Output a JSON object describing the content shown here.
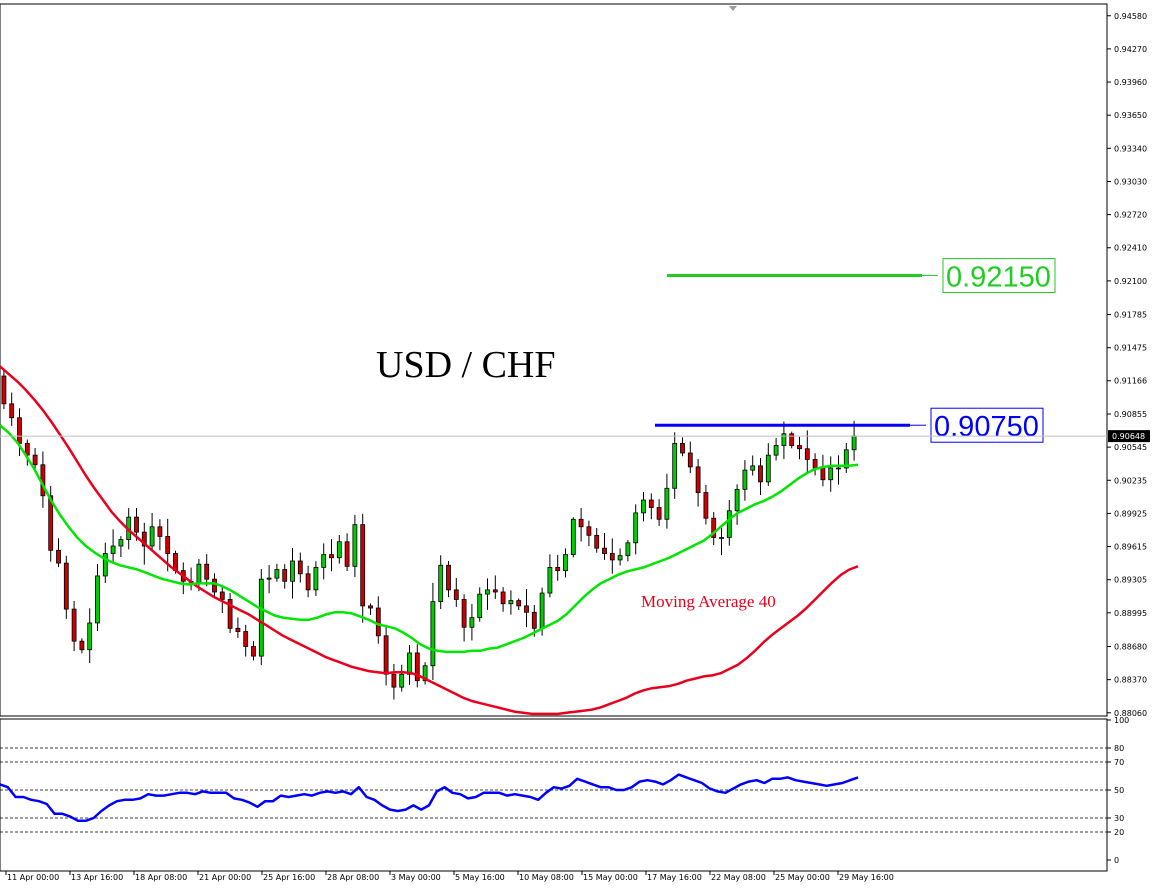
{
  "chart_data": [
    {
      "type": "candlestick",
      "title": "USD / CHF",
      "ylim": [
        0.8803,
        0.9469
      ],
      "y_ticks": [
        "0.94580",
        "0.94270",
        "0.93960",
        "0.93650",
        "0.93340",
        "0.93030",
        "0.92720",
        "0.92410",
        "0.92100",
        "0.91785",
        "0.91475",
        "0.91166",
        "0.90855",
        "0.90545",
        "0.90235",
        "0.89925",
        "0.89615",
        "0.89305",
        "0.88995",
        "0.88680",
        "0.88370",
        "0.88060"
      ],
      "x_ticks": [
        "11 Apr 00:00",
        "13 Apr 16:00",
        "18 Apr 08:00",
        "21 Apr 00:00",
        "25 Apr 16:00",
        "28 Apr 08:00",
        "3 May 00:00",
        "5 May 16:00",
        "10 May 08:00",
        "15 May 00:00",
        "17 May 16:00",
        "22 May 08:00",
        "25 May 00:00",
        "29 May 16:00"
      ],
      "current_price": "0.90648",
      "price_path": [
        0.9121,
        0.9095,
        0.9082,
        0.9058,
        0.9047,
        0.9038,
        0.9009,
        0.8958,
        0.8946,
        0.8903,
        0.8873,
        0.8865,
        0.889,
        0.8934,
        0.8955,
        0.8962,
        0.8968,
        0.8989,
        0.8975,
        0.8962,
        0.898,
        0.8971,
        0.8955,
        0.8939,
        0.8929,
        0.8928,
        0.8945,
        0.8931,
        0.8919,
        0.8912,
        0.8885,
        0.8882,
        0.8868,
        0.8859,
        0.8931,
        0.8932,
        0.894,
        0.8929,
        0.8948,
        0.8936,
        0.8921,
        0.8942,
        0.8954,
        0.8951,
        0.8966,
        0.8943,
        0.8982,
        0.8906,
        0.8904,
        0.8878,
        0.8842,
        0.883,
        0.8842,
        0.8862,
        0.8836,
        0.885,
        0.891,
        0.8944,
        0.8921,
        0.8912,
        0.8886,
        0.8895,
        0.8917,
        0.8921,
        0.8919,
        0.8908,
        0.8911,
        0.8906,
        0.89,
        0.8885,
        0.8918,
        0.8942,
        0.8939,
        0.8954,
        0.8987,
        0.898,
        0.8972,
        0.896,
        0.8955,
        0.8949,
        0.8953,
        0.8965,
        0.8993,
        0.9005,
        0.8998,
        0.8987,
        0.9016,
        0.9058,
        0.9049,
        0.9036,
        0.9012,
        0.8988,
        0.897,
        0.897,
        0.8995,
        0.9015,
        0.9033,
        0.9037,
        0.9022,
        0.9047,
        0.9056,
        0.9067,
        0.9056,
        0.9053,
        0.9043,
        0.9035,
        0.9024,
        0.9035,
        0.9035,
        0.9052,
        0.9065
      ],
      "series": [
        {
          "name": "Moving Average 40",
          "color": "#e8001c",
          "values": [
            0.913,
            0.9123,
            0.9116,
            0.9108,
            0.9099,
            0.9089,
            0.9078,
            0.9066,
            0.9054,
            0.9041,
            0.9028,
            0.9016,
            0.9005,
            0.8994,
            0.8985,
            0.8977,
            0.897,
            0.8963,
            0.8956,
            0.8949,
            0.8942,
            0.8936,
            0.893,
            0.8924,
            0.8919,
            0.8914,
            0.891,
            0.8906,
            0.8902,
            0.8898,
            0.8893,
            0.8888,
            0.8883,
            0.8878,
            0.8874,
            0.887,
            0.8866,
            0.8862,
            0.8858,
            0.8855,
            0.8852,
            0.8849,
            0.8847,
            0.8845,
            0.8844,
            0.8843,
            0.8844,
            0.8844,
            0.8843,
            0.884,
            0.8836,
            0.8832,
            0.8828,
            0.8824,
            0.882,
            0.8817,
            0.8815,
            0.8813,
            0.8811,
            0.8809,
            0.8807,
            0.8806,
            0.8805,
            0.8805,
            0.8805,
            0.8805,
            0.8806,
            0.8807,
            0.8808,
            0.8809,
            0.8811,
            0.8814,
            0.8817,
            0.882,
            0.8824,
            0.8827,
            0.8829,
            0.883,
            0.8831,
            0.8833,
            0.8836,
            0.8838,
            0.884,
            0.8841,
            0.8843,
            0.8847,
            0.8851,
            0.8857,
            0.8864,
            0.8872,
            0.8879,
            0.8885,
            0.8891,
            0.8897,
            0.8904,
            0.8912,
            0.892,
            0.8928,
            0.8935,
            0.894,
            0.8943
          ]
        },
        {
          "name": "",
          "color": "#00e600",
          "values": [
            0.9075,
            0.9068,
            0.9059,
            0.9047,
            0.9034,
            0.9019,
            0.9004,
            0.8991,
            0.898,
            0.897,
            0.8962,
            0.8956,
            0.8951,
            0.8947,
            0.8944,
            0.8942,
            0.894,
            0.8937,
            0.8934,
            0.8931,
            0.8929,
            0.8927,
            0.8926,
            0.8927,
            0.8927,
            0.8927,
            0.8924,
            0.892,
            0.8915,
            0.891,
            0.8905,
            0.8901,
            0.8897,
            0.8895,
            0.8894,
            0.8893,
            0.8893,
            0.8895,
            0.8898,
            0.89,
            0.89,
            0.8899,
            0.8896,
            0.8893,
            0.8889,
            0.8887,
            0.8885,
            0.8881,
            0.8876,
            0.887,
            0.8866,
            0.8864,
            0.8863,
            0.8863,
            0.8863,
            0.8864,
            0.8864,
            0.8866,
            0.8867,
            0.887,
            0.8873,
            0.8876,
            0.888,
            0.8884,
            0.8888,
            0.8892,
            0.8898,
            0.8906,
            0.8914,
            0.8921,
            0.8927,
            0.8931,
            0.8935,
            0.8938,
            0.894,
            0.8942,
            0.8945,
            0.8948,
            0.8951,
            0.8955,
            0.8959,
            0.8963,
            0.8967,
            0.8973,
            0.898,
            0.8987,
            0.8993,
            0.8997,
            0.9001,
            0.9004,
            0.9008,
            0.9013,
            0.9019,
            0.9025,
            0.903,
            0.9034,
            0.9036,
            0.9037,
            0.9037,
            0.9037,
            0.9038
          ]
        }
      ],
      "levels": [
        {
          "label": "0.92150",
          "value": 0.9215,
          "color": "#22cc22"
        },
        {
          "label": "0.90750",
          "value": 0.9075,
          "color": "#0000ff"
        }
      ],
      "annotations": [
        "USD / CHF",
        "Moving Average 40"
      ]
    },
    {
      "type": "line",
      "ylim": [
        0,
        100
      ],
      "y_ticks": [
        "100",
        "80",
        "70",
        "50",
        "30",
        "20",
        "0"
      ],
      "grid_levels": [
        80,
        70,
        50,
        30,
        20
      ],
      "series": [
        {
          "name": "",
          "color": "#0000ff",
          "values": [
            54,
            52,
            45,
            45,
            43,
            42,
            40,
            33,
            33,
            31,
            28,
            28,
            30,
            35,
            39,
            42,
            43,
            43,
            44,
            47,
            46,
            46,
            47,
            48,
            48,
            47,
            49,
            48,
            48,
            48,
            44,
            43,
            41,
            38,
            42,
            42,
            46,
            45,
            46,
            47,
            46,
            48,
            49,
            48,
            49,
            47,
            52,
            45,
            43,
            39,
            36,
            35,
            36,
            39,
            36,
            39,
            49,
            52,
            48,
            47,
            44,
            45,
            48,
            48,
            48,
            46,
            47,
            46,
            45,
            43,
            48,
            52,
            51,
            53,
            58,
            56,
            54,
            52,
            52,
            50,
            50,
            52,
            56,
            57,
            56,
            54,
            57,
            61,
            59,
            57,
            55,
            51,
            49,
            48,
            51,
            54,
            56,
            57,
            55,
            58,
            58,
            59,
            57,
            56,
            55,
            54,
            53,
            54,
            55,
            57,
            59
          ]
        }
      ]
    }
  ]
}
